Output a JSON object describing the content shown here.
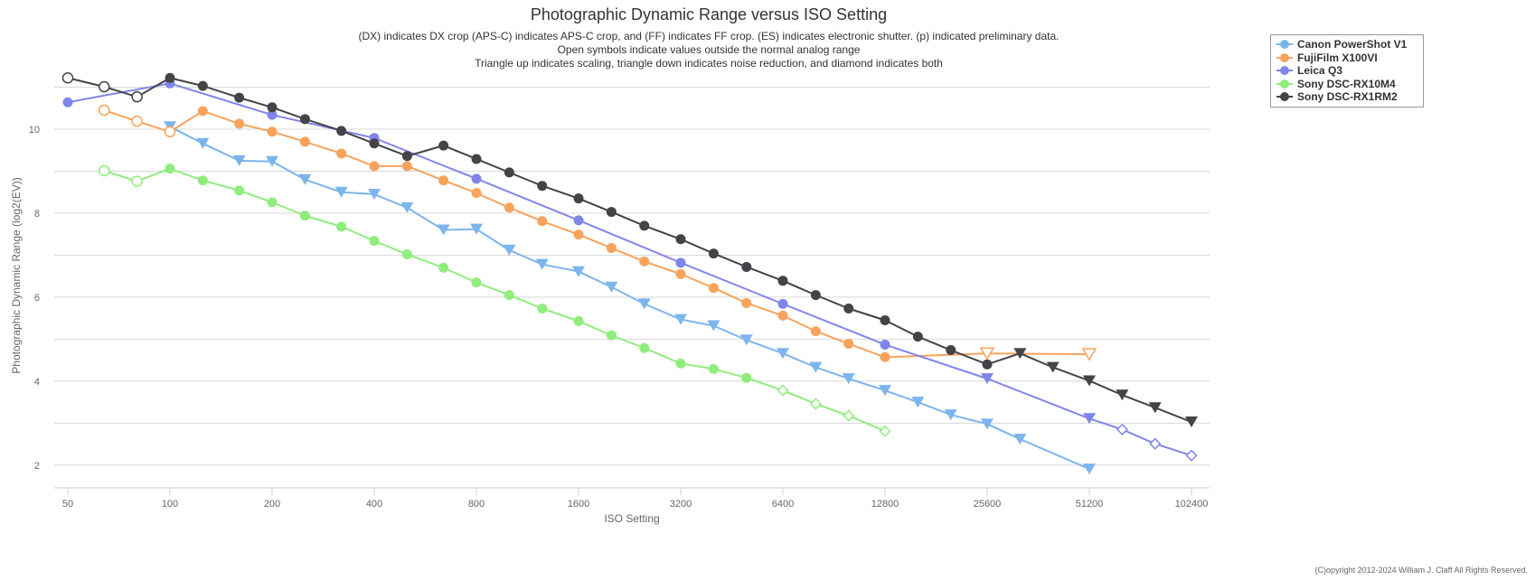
{
  "chart_data": {
    "type": "line",
    "title": "Photographic Dynamic Range versus ISO Setting",
    "subtitle": [
      "(DX) indicates DX crop (APS-C) indicates APS-C crop, and (FF) indicates FF crop. (ES) indicates electronic shutter. (p) indicated preliminary data.",
      "Open symbols indicate values outside the normal analog range",
      "Triangle up indicates scaling, triangle down indicates noise reduction, and diamond indicates both"
    ],
    "xlabel": "ISO Setting",
    "ylabel": "Photographic Dynamic Range (log2(EV))",
    "xscale": "log2",
    "xticks": [
      50,
      100,
      200,
      400,
      800,
      1600,
      3200,
      6400,
      12800,
      25600,
      51200,
      102400
    ],
    "yticks": [
      2,
      4,
      6,
      8,
      10
    ],
    "ylim": [
      1.46,
      12
    ],
    "legend_position": "top-right",
    "copyright": "(C)opyright 2012-2024 William J. Claff All Rights Reserved.",
    "series": [
      {
        "name": "Canon PowerShot V1",
        "color": "#7cb5ec",
        "iso": [
          100,
          125,
          160,
          200,
          250,
          320,
          400,
          500,
          640,
          800,
          1000,
          1250,
          1600,
          2000,
          2500,
          3200,
          4000,
          5000,
          6400,
          8000,
          10000,
          12800,
          16000,
          20000,
          25600,
          32000,
          51200
        ],
        "values": [
          10.06,
          9.66,
          9.25,
          9.23,
          8.8,
          8.5,
          8.45,
          8.13,
          7.6,
          7.62,
          7.12,
          6.78,
          6.61,
          6.24,
          5.84,
          5.47,
          5.32,
          4.98,
          4.66,
          4.33,
          4.06,
          3.78,
          3.5,
          3.2,
          2.98,
          2.62,
          1.91
        ],
        "markers": [
          "tri",
          "tri",
          "tri",
          "tri",
          "tri",
          "tri",
          "tri",
          "tri",
          "tri",
          "tri",
          "tri",
          "tri",
          "tri",
          "tri",
          "tri",
          "tri",
          "tri",
          "tri",
          "tri",
          "tri",
          "tri",
          "tri",
          "tri",
          "tri",
          "tri",
          "tri",
          "tri"
        ]
      },
      {
        "name": "FujiFilm X100VI",
        "color": "#f7a35c",
        "iso": [
          64,
          80,
          100,
          125,
          160,
          200,
          250,
          320,
          400,
          500,
          640,
          800,
          1000,
          1250,
          1600,
          2000,
          2500,
          3200,
          4000,
          5000,
          6400,
          8000,
          10000,
          12800,
          25600,
          51200
        ],
        "values": [
          10.45,
          10.19,
          9.94,
          10.43,
          10.13,
          9.94,
          9.7,
          9.42,
          9.12,
          9.12,
          8.78,
          8.48,
          8.13,
          7.81,
          7.49,
          7.17,
          6.85,
          6.55,
          6.22,
          5.86,
          5.56,
          5.19,
          4.89,
          4.57,
          4.66,
          4.64
        ],
        "markers": [
          "ocircle",
          "ocircle",
          "ocircle",
          "circle",
          "circle",
          "circle",
          "circle",
          "circle",
          "circle",
          "circle",
          "circle",
          "circle",
          "circle",
          "circle",
          "circle",
          "circle",
          "circle",
          "circle",
          "circle",
          "circle",
          "circle",
          "circle",
          "circle",
          "circle",
          "otri",
          "otri"
        ]
      },
      {
        "name": "Leica Q3",
        "color": "#8085e9",
        "iso": [
          50,
          100,
          200,
          400,
          800,
          1600,
          3200,
          6400,
          12800,
          25600,
          51200,
          64000,
          80000,
          102400
        ],
        "values": [
          10.64,
          11.09,
          10.34,
          9.79,
          8.82,
          7.83,
          6.82,
          5.84,
          4.87,
          4.06,
          3.11,
          2.85,
          2.51,
          2.23
        ],
        "markers": [
          "circle",
          "circle",
          "circle",
          "circle",
          "circle",
          "circle",
          "circle",
          "circle",
          "circle",
          "tri",
          "tri",
          "odiamond",
          "odiamond",
          "odiamond"
        ]
      },
      {
        "name": "Sony DSC-RX10M4",
        "color": "#90ed7d",
        "iso": [
          64,
          80,
          100,
          125,
          160,
          200,
          250,
          320,
          400,
          500,
          640,
          800,
          1000,
          1250,
          1600,
          2000,
          2500,
          3200,
          4000,
          5000,
          6400,
          8000,
          10000,
          12800
        ],
        "values": [
          9.01,
          8.76,
          9.06,
          8.78,
          8.54,
          8.26,
          7.94,
          7.68,
          7.34,
          7.02,
          6.7,
          6.35,
          6.05,
          5.73,
          5.43,
          5.09,
          4.79,
          4.42,
          4.29,
          4.08,
          3.78,
          3.46,
          3.18,
          2.81
        ],
        "markers": [
          "ocircle",
          "ocircle",
          "circle",
          "circle",
          "circle",
          "circle",
          "circle",
          "circle",
          "circle",
          "circle",
          "circle",
          "circle",
          "circle",
          "circle",
          "circle",
          "circle",
          "circle",
          "circle",
          "circle",
          "circle",
          "odiamond",
          "odiamond",
          "odiamond",
          "odiamond"
        ]
      },
      {
        "name": "Sony DSC-RX1RM2",
        "color": "#434348",
        "iso": [
          50,
          64,
          80,
          100,
          125,
          160,
          200,
          250,
          320,
          400,
          500,
          640,
          800,
          1000,
          1250,
          1600,
          2000,
          2500,
          3200,
          4000,
          5000,
          6400,
          8000,
          10000,
          12800,
          16000,
          20000,
          25600,
          32000,
          40000,
          51200,
          64000,
          80000,
          102400
        ],
        "values": [
          11.22,
          11.01,
          10.77,
          11.22,
          11.03,
          10.75,
          10.52,
          10.24,
          9.96,
          9.66,
          9.36,
          9.61,
          9.29,
          8.97,
          8.65,
          8.35,
          8.03,
          7.7,
          7.38,
          7.04,
          6.72,
          6.39,
          6.05,
          5.73,
          5.45,
          5.06,
          4.74,
          4.4,
          4.66,
          4.33,
          4.01,
          3.67,
          3.37,
          3.03
        ],
        "markers": [
          "ocircle",
          "ocircle",
          "ocircle",
          "circle",
          "circle",
          "circle",
          "circle",
          "circle",
          "circle",
          "circle",
          "circle",
          "circle",
          "circle",
          "circle",
          "circle",
          "circle",
          "circle",
          "circle",
          "circle",
          "circle",
          "circle",
          "circle",
          "circle",
          "circle",
          "circle",
          "circle",
          "circle",
          "circle",
          "tri",
          "tri",
          "tri",
          "tri",
          "tri",
          "tri"
        ]
      }
    ]
  }
}
